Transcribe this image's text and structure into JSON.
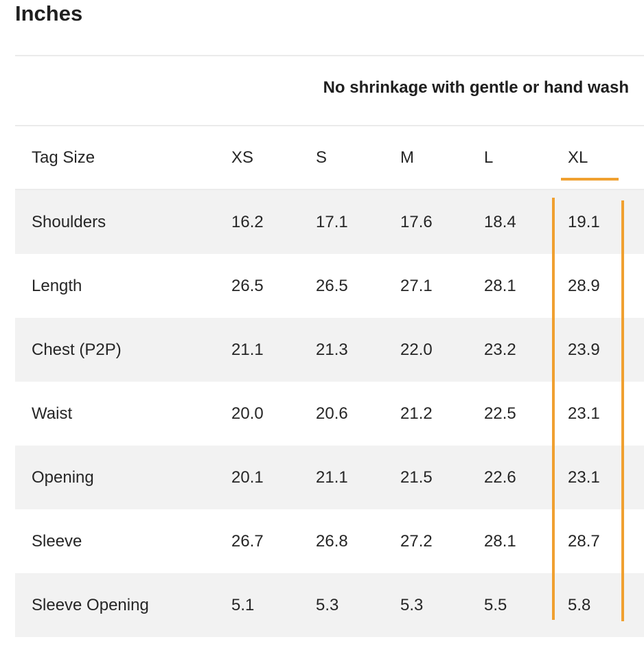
{
  "title": "Inches",
  "note": "No shrinkage with gentle or hand wash",
  "table": {
    "headers": [
      "Tag Size",
      "XS",
      "S",
      "M",
      "L",
      "XL"
    ],
    "rows": [
      [
        "Shoulders",
        "16.2",
        "17.1",
        "17.6",
        "18.4",
        "19.1"
      ],
      [
        "Length",
        "26.5",
        "26.5",
        "27.1",
        "28.1",
        "28.9"
      ],
      [
        "Chest (P2P)",
        "21.1",
        "21.3",
        "22.0",
        "23.2",
        "23.9"
      ],
      [
        "Waist",
        "20.0",
        "20.6",
        "21.2",
        "22.5",
        "23.1"
      ],
      [
        "Opening",
        "20.1",
        "21.1",
        "21.5",
        "22.6",
        "23.1"
      ],
      [
        "Sleeve",
        "26.7",
        "26.8",
        "27.2",
        "28.1",
        "28.7"
      ],
      [
        "Sleeve Opening",
        "5.1",
        "5.3",
        "5.3",
        "5.5",
        "5.8"
      ]
    ]
  },
  "highlight": {
    "column": "XL",
    "color": "#f0a030"
  },
  "colors": {
    "row_shade": "#f2f2f2",
    "divider": "#ebebeb"
  }
}
